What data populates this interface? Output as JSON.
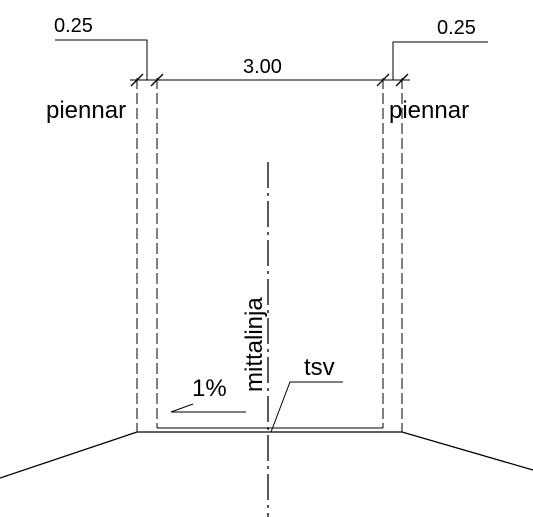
{
  "dimensions": {
    "left_shoulder": "0.25",
    "lane_width": "3.00",
    "right_shoulder": "0.25"
  },
  "labels": {
    "shoulder_left": "piennar",
    "shoulder_right": "piennar",
    "centerline": "mittalinja",
    "slope": "1%",
    "design_level": "tsv"
  }
}
